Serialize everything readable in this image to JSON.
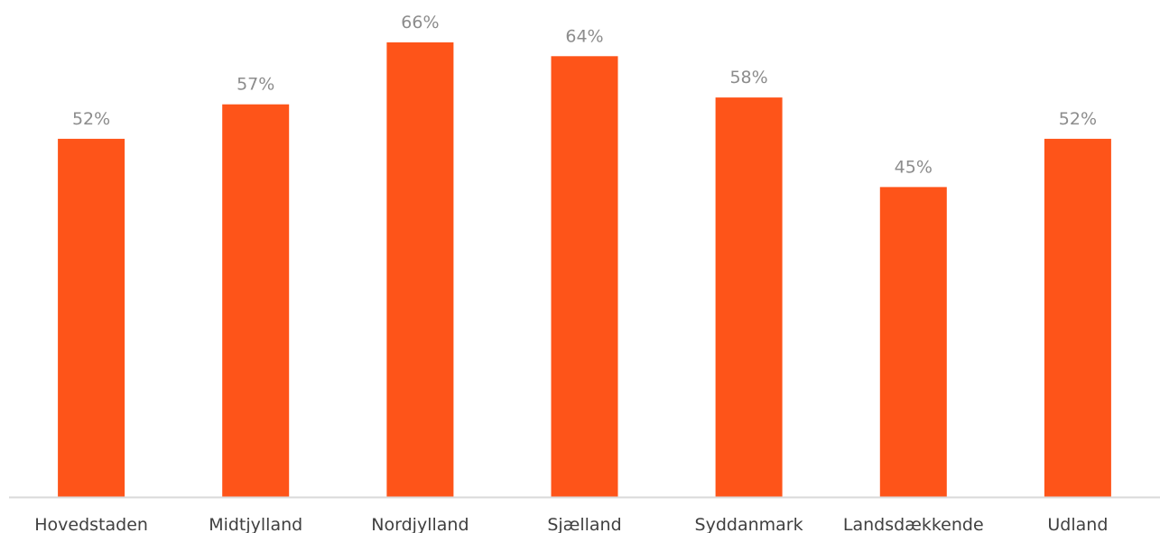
{
  "chart_data": {
    "type": "bar",
    "categories": [
      "Hovedstaden",
      "Midtjylland",
      "Nordjylland",
      "Sjælland",
      "Syddanmark",
      "Landsdækkende",
      "Udland"
    ],
    "values": [
      52,
      57,
      66,
      64,
      58,
      45,
      52
    ],
    "value_labels": [
      "52%",
      "57%",
      "66%",
      "64%",
      "58%",
      "45%",
      "52%"
    ],
    "unit": "%",
    "ylim": [
      0,
      66
    ],
    "title": "",
    "xlabel": "",
    "ylabel": "",
    "grid": false,
    "legend": "none",
    "colors": {
      "bar": "#fe5419",
      "axis": "#d9d9d9",
      "data_label": "#8c8c8c",
      "tick_label": "#404040"
    }
  }
}
